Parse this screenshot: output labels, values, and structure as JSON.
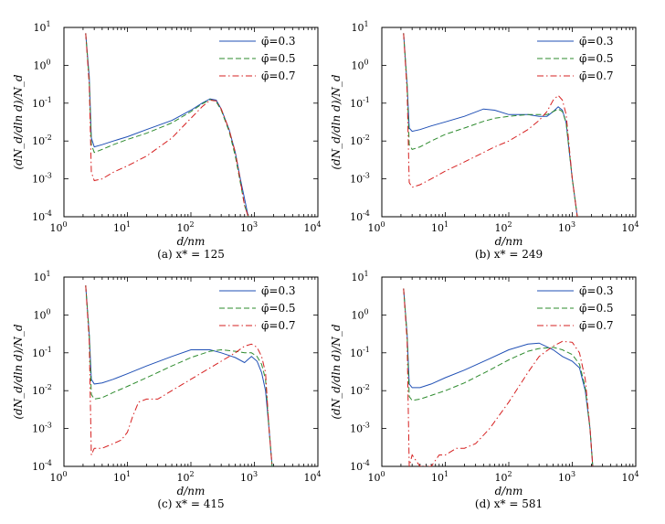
{
  "figure": {
    "panels": [
      {
        "caption": "(a) x* = 125",
        "xlabel": "d/nm",
        "ylabel": "(dN_d/dln d)/N_d",
        "legend": [
          "φ̄=0.3",
          "φ̄=0.5",
          "φ̄=0.7"
        ]
      },
      {
        "caption": "(b) x* = 249",
        "xlabel": "d/nm",
        "ylabel": "(dN_d/dln d)/N_d",
        "legend": [
          "φ̄=0.3",
          "φ̄=0.5",
          "φ̄=0.7"
        ]
      },
      {
        "caption": "(c) x* = 415",
        "xlabel": "d/nm",
        "ylabel": "(dN_d/dln d)/N_d",
        "legend": [
          "φ̄=0.3",
          "φ̄=0.5",
          "φ̄=0.7"
        ]
      },
      {
        "caption": "(d) x* = 581",
        "xlabel": "d/nm",
        "ylabel": "(dN_d/dln d)/N_d",
        "legend": [
          "φ̄=0.3",
          "φ̄=0.5",
          "φ̄=0.7"
        ]
      }
    ]
  },
  "chart_data": [
    {
      "type": "line",
      "caption": "(a) x* = 125",
      "xscale": "log",
      "yscale": "log",
      "xlim": [
        1,
        10000
      ],
      "ylim": [
        0.0001,
        10
      ],
      "xticks": [
        "10^0",
        "10^1",
        "10^2",
        "10^3",
        "10^4"
      ],
      "yticks": [
        "10^-4",
        "10^-3",
        "10^-2",
        "10^-1",
        "10^0",
        "10^1"
      ],
      "legend_position": "top-right",
      "series": [
        {
          "name": "φ̄=0.3",
          "color": "#1f4fb5",
          "dash": "solid",
          "x": [
            2.2,
            2.5,
            2.7,
            3,
            4,
            6,
            10,
            20,
            50,
            100,
            150,
            200,
            250,
            300,
            400,
            500,
            600,
            700,
            800
          ],
          "y": [
            7,
            0.5,
            0.012,
            0.007,
            0.008,
            0.01,
            0.013,
            0.02,
            0.035,
            0.065,
            0.1,
            0.13,
            0.12,
            0.07,
            0.02,
            0.005,
            0.001,
            0.0003,
            0.0001
          ]
        },
        {
          "name": "φ̄=0.5",
          "color": "#2e8b2e",
          "dash": "dashed",
          "x": [
            2.2,
            2.5,
            2.7,
            3,
            4,
            6,
            10,
            20,
            50,
            100,
            150,
            200,
            250,
            300,
            400,
            500,
            600,
            700,
            800
          ],
          "y": [
            7,
            0.4,
            0.008,
            0.005,
            0.006,
            0.008,
            0.011,
            0.016,
            0.03,
            0.06,
            0.095,
            0.125,
            0.11,
            0.065,
            0.018,
            0.004,
            0.0008,
            0.0002,
            0.0001
          ]
        },
        {
          "name": "φ̄=0.7",
          "color": "#d62020",
          "dash": "dashdot",
          "x": [
            2.2,
            2.5,
            2.7,
            3,
            4,
            6,
            10,
            20,
            50,
            100,
            150,
            200,
            250,
            300,
            400,
            500,
            600,
            700,
            800
          ],
          "y": [
            7,
            0.3,
            0.0015,
            0.0009,
            0.001,
            0.0015,
            0.0022,
            0.004,
            0.012,
            0.04,
            0.08,
            0.12,
            0.115,
            0.07,
            0.02,
            0.005,
            0.0009,
            0.0002,
            0.0001
          ]
        }
      ]
    },
    {
      "type": "line",
      "caption": "(b) x* = 249",
      "xscale": "log",
      "yscale": "log",
      "xlim": [
        1,
        10000
      ],
      "ylim": [
        0.0001,
        10
      ],
      "xticks": [
        "10^0",
        "10^1",
        "10^2",
        "10^3",
        "10^4"
      ],
      "yticks": [
        "10^-4",
        "10^-3",
        "10^-2",
        "10^-1",
        "10^0",
        "10^1"
      ],
      "legend_position": "top-right",
      "series": [
        {
          "name": "φ̄=0.3",
          "color": "#1f4fb5",
          "dash": "solid",
          "x": [
            2.2,
            2.5,
            2.7,
            3,
            4,
            6,
            10,
            20,
            40,
            60,
            100,
            200,
            300,
            400,
            500,
            600,
            700,
            800,
            1000,
            1200
          ],
          "y": [
            7,
            0.3,
            0.022,
            0.018,
            0.02,
            0.025,
            0.032,
            0.045,
            0.07,
            0.065,
            0.05,
            0.05,
            0.045,
            0.045,
            0.06,
            0.08,
            0.065,
            0.03,
            0.001,
            0.0001
          ]
        },
        {
          "name": "φ̄=0.5",
          "color": "#2e8b2e",
          "dash": "dashed",
          "x": [
            2.2,
            2.5,
            2.7,
            3,
            4,
            6,
            10,
            20,
            40,
            60,
            100,
            200,
            300,
            400,
            500,
            600,
            700,
            800,
            1000,
            1200
          ],
          "y": [
            7,
            0.3,
            0.008,
            0.006,
            0.007,
            0.01,
            0.015,
            0.022,
            0.033,
            0.04,
            0.045,
            0.05,
            0.05,
            0.05,
            0.06,
            0.07,
            0.06,
            0.03,
            0.001,
            0.0001
          ]
        },
        {
          "name": "φ̄=0.7",
          "color": "#d62020",
          "dash": "dashdot",
          "x": [
            2.2,
            2.5,
            2.7,
            3,
            4,
            6,
            10,
            20,
            40,
            60,
            100,
            200,
            300,
            400,
            500,
            600,
            700,
            800,
            1000,
            1200
          ],
          "y": [
            7,
            0.2,
            0.0008,
            0.0006,
            0.0007,
            0.001,
            0.0016,
            0.0028,
            0.005,
            0.007,
            0.01,
            0.02,
            0.035,
            0.06,
            0.12,
            0.16,
            0.12,
            0.05,
            0.001,
            0.0001
          ]
        }
      ]
    },
    {
      "type": "line",
      "caption": "(c) x* = 415",
      "xscale": "log",
      "yscale": "log",
      "xlim": [
        1,
        10000
      ],
      "ylim": [
        0.0001,
        10
      ],
      "xticks": [
        "10^0",
        "10^1",
        "10^2",
        "10^3",
        "10^4"
      ],
      "yticks": [
        "10^-4",
        "10^-3",
        "10^-2",
        "10^-1",
        "10^0",
        "10^1"
      ],
      "legend_position": "top-right",
      "series": [
        {
          "name": "φ̄=0.3",
          "color": "#1f4fb5",
          "dash": "solid",
          "x": [
            2.2,
            2.5,
            2.7,
            3,
            4,
            6,
            10,
            20,
            50,
            100,
            200,
            300,
            500,
            700,
            900,
            1100,
            1300,
            1500,
            1700,
            1900
          ],
          "y": [
            6,
            0.3,
            0.02,
            0.015,
            0.016,
            0.02,
            0.028,
            0.045,
            0.08,
            0.12,
            0.12,
            0.1,
            0.075,
            0.055,
            0.08,
            0.06,
            0.03,
            0.01,
            0.001,
            0.0001
          ]
        },
        {
          "name": "φ̄=0.5",
          "color": "#2e8b2e",
          "dash": "dashed",
          "x": [
            2.2,
            2.5,
            2.7,
            3,
            4,
            6,
            10,
            20,
            50,
            100,
            200,
            300,
            500,
            700,
            900,
            1100,
            1300,
            1500,
            1700,
            1900
          ],
          "y": [
            6,
            0.3,
            0.008,
            0.006,
            0.0065,
            0.009,
            0.013,
            0.022,
            0.045,
            0.075,
            0.11,
            0.12,
            0.11,
            0.1,
            0.1,
            0.08,
            0.05,
            0.02,
            0.001,
            0.0001
          ]
        },
        {
          "name": "φ̄=0.7",
          "color": "#d62020",
          "dash": "dashdot",
          "x": [
            2.2,
            2.5,
            2.7,
            3,
            4,
            6,
            8,
            10,
            12,
            15,
            20,
            30,
            50,
            100,
            200,
            300,
            500,
            700,
            900,
            1100,
            1300,
            1500,
            1700,
            1900
          ],
          "y": [
            6,
            0.2,
            0.0002,
            0.0003,
            0.0003,
            0.0004,
            0.0005,
            0.0008,
            0.002,
            0.005,
            0.006,
            0.006,
            0.01,
            0.02,
            0.04,
            0.06,
            0.1,
            0.15,
            0.17,
            0.14,
            0.08,
            0.03,
            0.001,
            0.0001
          ]
        }
      ]
    },
    {
      "type": "line",
      "caption": "(d) x* = 581",
      "xscale": "log",
      "yscale": "log",
      "xlim": [
        1,
        10000
      ],
      "ylim": [
        0.0001,
        10
      ],
      "xticks": [
        "10^0",
        "10^1",
        "10^2",
        "10^3",
        "10^4"
      ],
      "yticks": [
        "10^-4",
        "10^-3",
        "10^-2",
        "10^-1",
        "10^0",
        "10^1"
      ],
      "legend_position": "top-right",
      "series": [
        {
          "name": "φ̄=0.3",
          "color": "#1f4fb5",
          "dash": "solid",
          "x": [
            2.2,
            2.5,
            2.7,
            3,
            4,
            6,
            10,
            20,
            50,
            100,
            200,
            300,
            500,
            700,
            1000,
            1300,
            1600,
            1900,
            2100
          ],
          "y": [
            5,
            0.3,
            0.015,
            0.012,
            0.012,
            0.015,
            0.022,
            0.035,
            0.07,
            0.12,
            0.17,
            0.18,
            0.12,
            0.08,
            0.06,
            0.04,
            0.01,
            0.001,
            0.0001
          ]
        },
        {
          "name": "φ̄=0.5",
          "color": "#2e8b2e",
          "dash": "dashed",
          "x": [
            2.2,
            2.5,
            2.7,
            3,
            4,
            6,
            10,
            20,
            50,
            100,
            200,
            300,
            500,
            700,
            1000,
            1300,
            1600,
            1900,
            2100
          ],
          "y": [
            5,
            0.3,
            0.007,
            0.0055,
            0.006,
            0.0075,
            0.01,
            0.016,
            0.035,
            0.065,
            0.11,
            0.13,
            0.14,
            0.12,
            0.09,
            0.05,
            0.012,
            0.001,
            0.0001
          ]
        },
        {
          "name": "φ̄=0.7",
          "color": "#d62020",
          "dash": "dashdot",
          "x": [
            2.2,
            2.5,
            2.7,
            3,
            4,
            6,
            8,
            10,
            15,
            20,
            30,
            50,
            100,
            200,
            300,
            500,
            700,
            1000,
            1300,
            1600,
            1900,
            2100
          ],
          "y": [
            5,
            0.2,
            0.0001,
            0.0002,
            0.0001,
            0.0001,
            0.0002,
            0.0002,
            0.0003,
            0.0003,
            0.0004,
            0.001,
            0.005,
            0.03,
            0.08,
            0.15,
            0.2,
            0.19,
            0.1,
            0.02,
            0.001,
            0.0001
          ]
        }
      ]
    }
  ]
}
